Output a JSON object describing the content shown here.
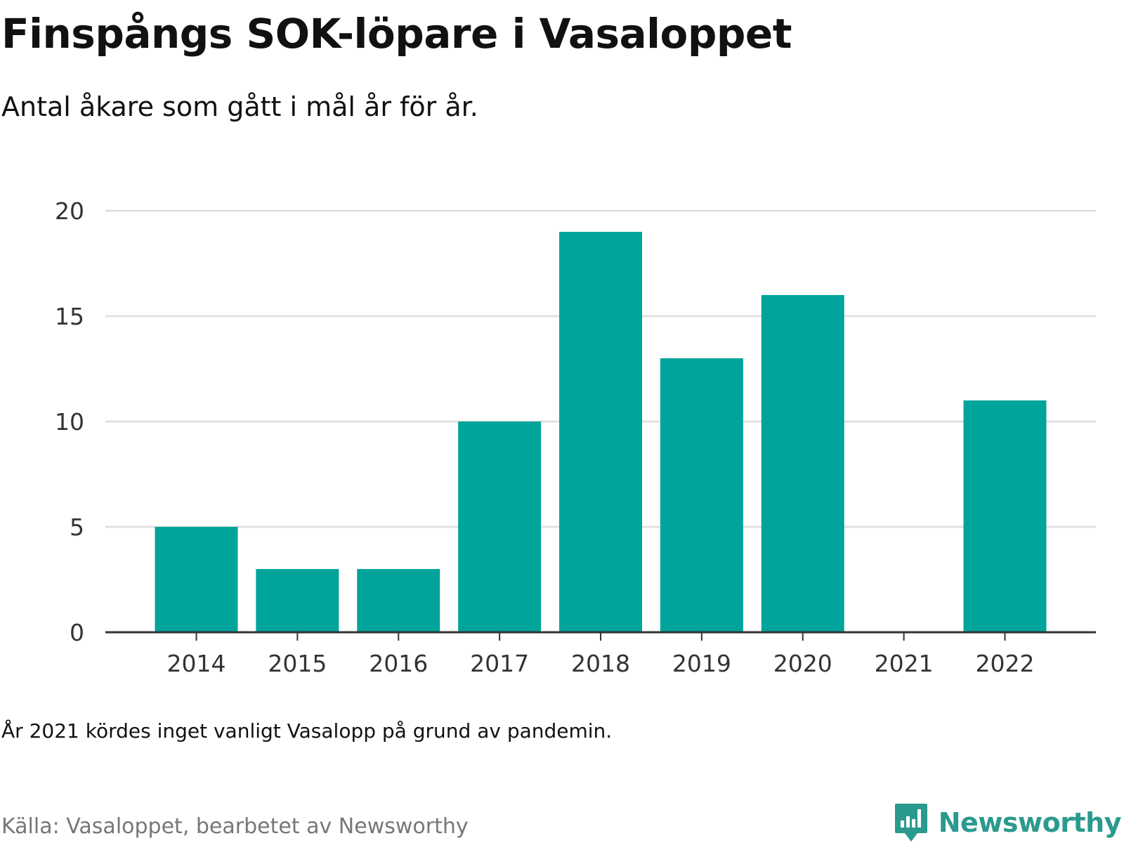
{
  "header": {
    "title": "Finspångs SOK-löpare i Vasaloppet",
    "subtitle": "Antal åkare som gått i mål år för år."
  },
  "footer": {
    "note": "År 2021 kördes inget vanligt Vasalopp på grund av pandemin.",
    "source": "Källa: Vasaloppet, bearbetet av Newsworthy",
    "brand": "Newsworthy",
    "brand_icon": "newsworthy-logo-icon"
  },
  "colors": {
    "bar": "#00a49a",
    "grid": "#dddddd",
    "axis": "#333333",
    "brand": "#2a9a8e"
  },
  "chart_data": {
    "type": "bar",
    "title": "Finspångs SOK-löpare i Vasaloppet",
    "subtitle": "Antal åkare som gått i mål år för år.",
    "categories": [
      "2014",
      "2015",
      "2016",
      "2017",
      "2018",
      "2019",
      "2020",
      "2021",
      "2022"
    ],
    "values": [
      5,
      3,
      3,
      10,
      19,
      13,
      16,
      null,
      11
    ],
    "ylim": [
      0,
      20
    ],
    "yticks": [
      0,
      5,
      10,
      15,
      20
    ],
    "grid": true,
    "legend": "none"
  }
}
